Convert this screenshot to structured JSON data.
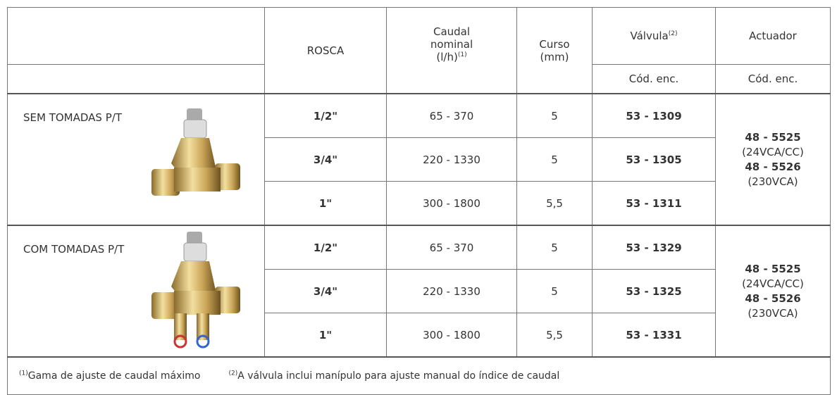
{
  "header": {
    "rosca": "ROSCA",
    "caudal": [
      "Caudal",
      "nominal",
      "(l/h)"
    ],
    "caudal_sup": "(1)",
    "curso": [
      "Curso",
      "(mm)"
    ],
    "valvula": "Válvula",
    "valvula_sup": "(2)",
    "actuador": "Actuador",
    "valvula_code": "Cód. enc.",
    "actuador_code": "Cód. enc."
  },
  "groups": [
    {
      "label": "SEM TOMADAS P/T",
      "rows": [
        {
          "rosca": "1/2\"",
          "caudal": "65 - 370",
          "curso": "5",
          "valvula": "53 - 1309"
        },
        {
          "rosca": "3/4\"",
          "caudal": "220 - 1330",
          "curso": "5",
          "valvula": "53 - 1305"
        },
        {
          "rosca": "1\"",
          "caudal": "300 - 1800",
          "curso": "5,5",
          "valvula": "53 - 1311"
        }
      ],
      "actuador": [
        {
          "code": "48 - 5525",
          "note": "(24VCA/CC)"
        },
        {
          "code": "48 - 5526",
          "note": "(230VCA)"
        }
      ]
    },
    {
      "label": "COM TOMADAS P/T",
      "rows": [
        {
          "rosca": "1/2\"",
          "caudal": "65 - 370",
          "curso": "5",
          "valvula": "53 - 1329"
        },
        {
          "rosca": "3/4\"",
          "caudal": "220 - 1330",
          "curso": "5",
          "valvula": "53 - 1325"
        },
        {
          "rosca": "1\"",
          "caudal": "300 - 1800",
          "curso": "5,5",
          "valvula": "53 - 1331"
        }
      ],
      "actuador": [
        {
          "code": "48 - 5525",
          "note": "(24VCA/CC)"
        },
        {
          "code": "48 - 5526",
          "note": "(230VCA)"
        }
      ]
    }
  ],
  "footnotes": [
    {
      "mark": "(1)",
      "text": "Gama de ajuste de caudal máximo"
    },
    {
      "mark": "(2)",
      "text": "A válvula inclui manípulo para ajuste manual do índice de caudal"
    }
  ]
}
